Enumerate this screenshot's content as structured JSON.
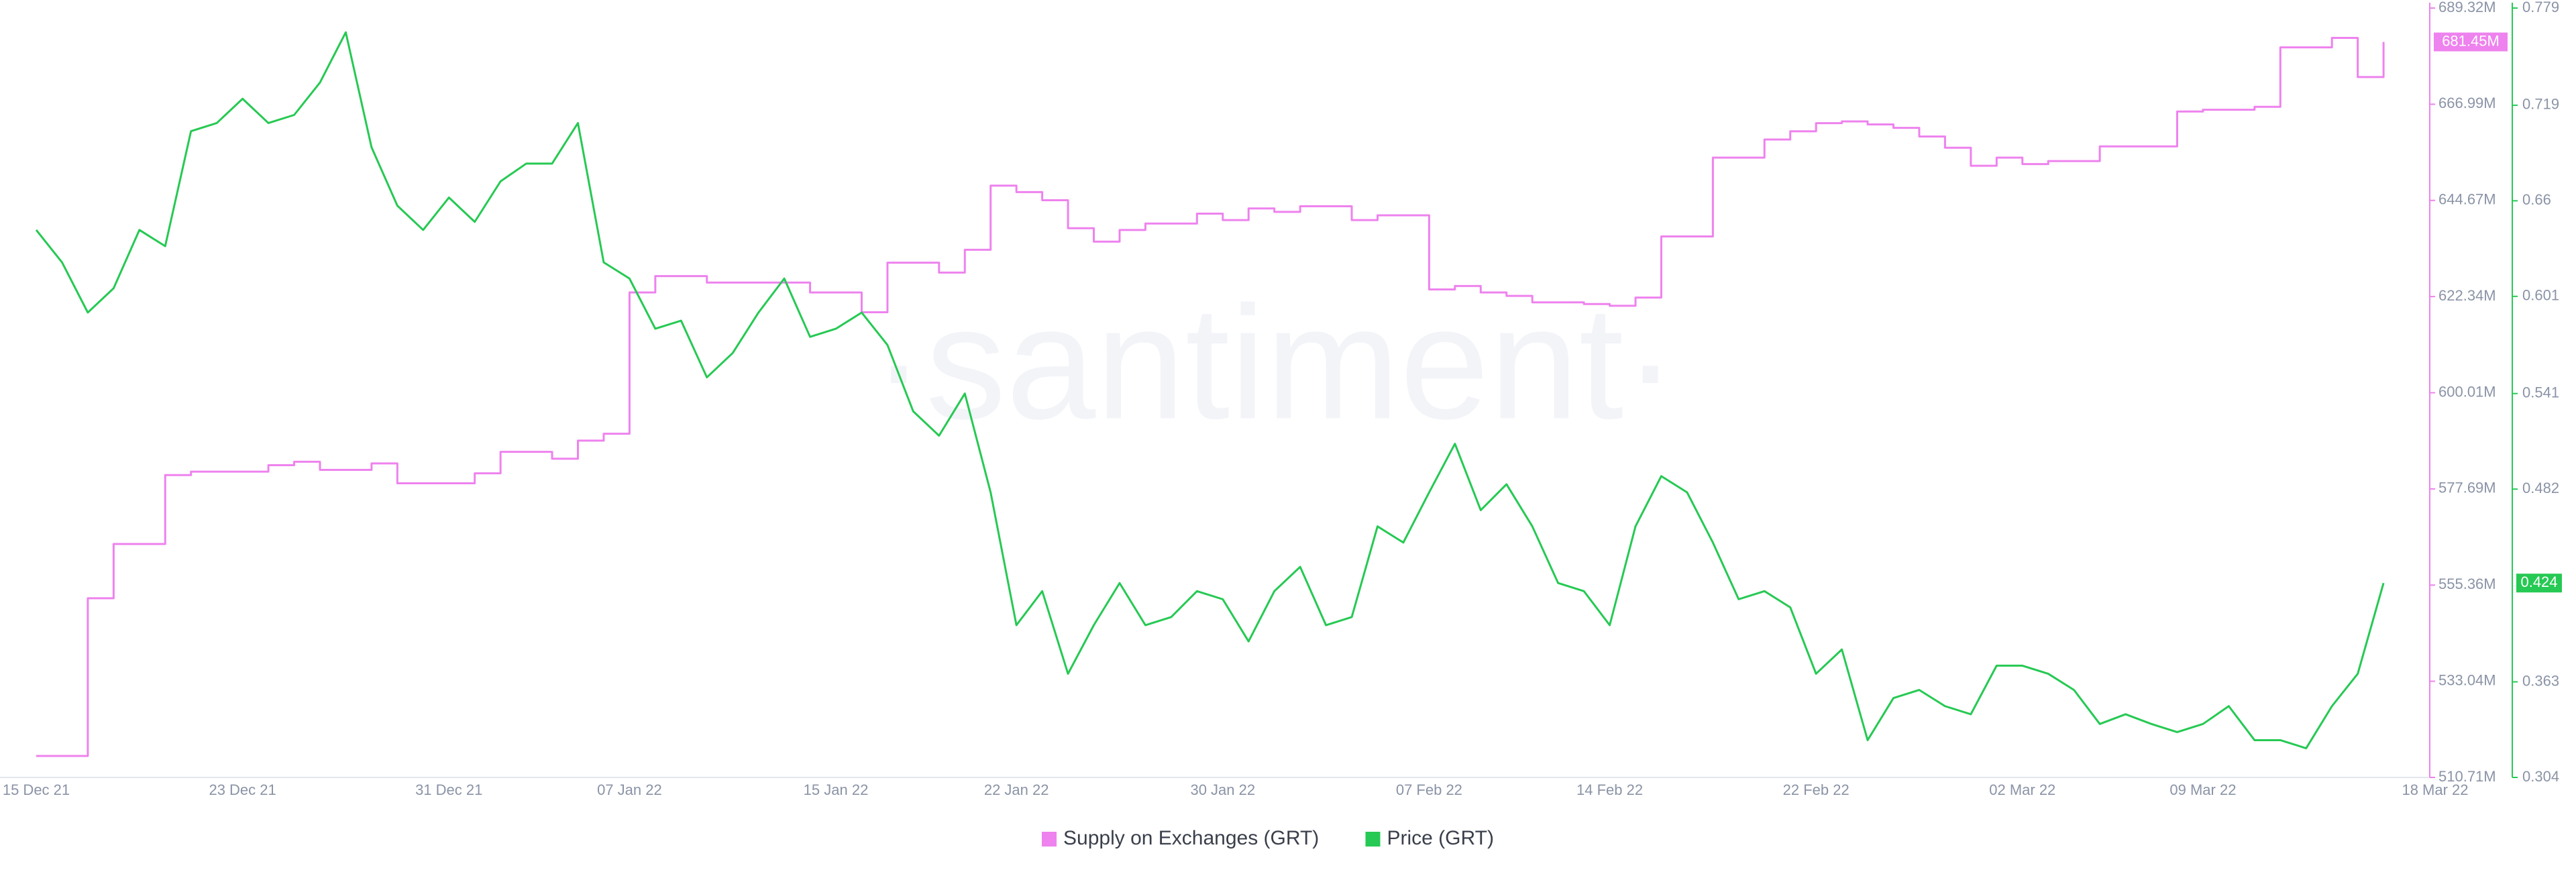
{
  "chart_data": {
    "type": "line",
    "watermark": "·santiment·",
    "x": [
      "15 Dec 21",
      "16 Dec 21",
      "17 Dec 21",
      "18 Dec 21",
      "19 Dec 21",
      "20 Dec 21",
      "21 Dec 21",
      "22 Dec 21",
      "23 Dec 21",
      "24 Dec 21",
      "25 Dec 21",
      "26 Dec 21",
      "27 Dec 21",
      "28 Dec 21",
      "29 Dec 21",
      "30 Dec 21",
      "31 Dec 21",
      "01 Jan 22",
      "02 Jan 22",
      "03 Jan 22",
      "04 Jan 22",
      "05 Jan 22",
      "06 Jan 22",
      "07 Jan 22",
      "08 Jan 22",
      "09 Jan 22",
      "10 Jan 22",
      "11 Jan 22",
      "12 Jan 22",
      "13 Jan 22",
      "14 Jan 22",
      "15 Jan 22",
      "16 Jan 22",
      "17 Jan 22",
      "18 Jan 22",
      "19 Jan 22",
      "20 Jan 22",
      "21 Jan 22",
      "22 Jan 22",
      "23 Jan 22",
      "24 Jan 22",
      "25 Jan 22",
      "26 Jan 22",
      "27 Jan 22",
      "28 Jan 22",
      "29 Jan 22",
      "30 Jan 22",
      "31 Jan 22",
      "01 Feb 22",
      "02 Feb 22",
      "03 Feb 22",
      "04 Feb 22",
      "05 Feb 22",
      "06 Feb 22",
      "07 Feb 22",
      "08 Feb 22",
      "09 Feb 22",
      "10 Feb 22",
      "11 Feb 22",
      "12 Feb 22",
      "13 Feb 22",
      "14 Feb 22",
      "15 Feb 22",
      "16 Feb 22",
      "17 Feb 22",
      "18 Feb 22",
      "19 Feb 22",
      "20 Feb 22",
      "21 Feb 22",
      "22 Feb 22",
      "23 Feb 22",
      "24 Feb 22",
      "25 Feb 22",
      "26 Feb 22",
      "27 Feb 22",
      "28 Feb 22",
      "01 Mar 22",
      "02 Mar 22",
      "03 Mar 22",
      "04 Mar 22",
      "05 Mar 22",
      "06 Mar 22",
      "07 Mar 22",
      "08 Mar 22",
      "09 Mar 22",
      "10 Mar 22",
      "11 Mar 22",
      "12 Mar 22",
      "13 Mar 22",
      "14 Mar 22",
      "15 Mar 22",
      "16 Mar 22",
      "17 Mar 22",
      "18 Mar 22"
    ],
    "xticks": [
      "15 Dec 21",
      "23 Dec 21",
      "31 Dec 21",
      "07 Jan 22",
      "15 Jan 22",
      "22 Jan 22",
      "30 Jan 22",
      "07 Feb 22",
      "14 Feb 22",
      "22 Feb 22",
      "02 Mar 22",
      "09 Mar 22",
      "18 Mar 22"
    ],
    "ylim": [
      510.71,
      689.32
    ],
    "yticks": [
      {
        "value": 510.71,
        "label": "510.71M"
      },
      {
        "value": 533.04,
        "label": "533.04M"
      },
      {
        "value": 555.36,
        "label": "555.36M"
      },
      {
        "value": 577.69,
        "label": "577.69M"
      },
      {
        "value": 600.01,
        "label": "600.01M"
      },
      {
        "value": 622.34,
        "label": "622.34M"
      },
      {
        "value": 644.67,
        "label": "644.67M"
      },
      {
        "value": 666.99,
        "label": "666.99M"
      },
      {
        "value": 689.32,
        "label": "689.32M"
      }
    ],
    "y2lim": [
      0.304,
      0.779
    ],
    "y2ticks": [
      0.304,
      0.363,
      0.482,
      0.541,
      0.601,
      0.66,
      0.719,
      0.779
    ],
    "grid": false,
    "legend": "bottom",
    "series": [
      {
        "name": "Supply on Exchanges (GRT)",
        "color": "#ee82ee",
        "step": true,
        "values": [
          515.7,
          515.7,
          552.3,
          564.9,
          564.9,
          580.9,
          581.7,
          581.7,
          581.7,
          583.2,
          584.0,
          582.1,
          582.1,
          583.6,
          579.0,
          579.0,
          579.0,
          581.3,
          586.3,
          586.3,
          584.7,
          588.9,
          590.5,
          623.3,
          627.1,
          627.1,
          625.6,
          625.6,
          625.6,
          625.6,
          623.3,
          623.3,
          618.7,
          630.2,
          630.2,
          627.9,
          633.2,
          648.1,
          646.6,
          644.7,
          638.2,
          635.1,
          637.8,
          639.3,
          639.3,
          641.6,
          640.1,
          642.8,
          642.0,
          643.3,
          643.3,
          640.1,
          641.2,
          641.2,
          624.0,
          624.8,
          623.3,
          622.5,
          621.0,
          621.0,
          620.6,
          620.2,
          622.1,
          636.3,
          636.3,
          654.6,
          654.6,
          658.8,
          660.7,
          662.6,
          663.0,
          662.3,
          661.5,
          659.5,
          656.9,
          652.7,
          654.6,
          653.1,
          653.8,
          653.8,
          657.2,
          657.2,
          657.2,
          665.3,
          665.7,
          665.7,
          666.4,
          680.2,
          680.2,
          682.4,
          673.3,
          681.45,
          null,
          null
        ],
        "value_labels": [
          null,
          null,
          null,
          null,
          null,
          null,
          null,
          null,
          null,
          null,
          null,
          null,
          null,
          null,
          null,
          null,
          null,
          null,
          null,
          null,
          null,
          null,
          null,
          null,
          null,
          null,
          null,
          null,
          null,
          null,
          null,
          null,
          null,
          null,
          null,
          null,
          null,
          null,
          null,
          null,
          null,
          null,
          null,
          null,
          null,
          null,
          null,
          null,
          null,
          null,
          null,
          null,
          null,
          null,
          null,
          null,
          null,
          null,
          null,
          null,
          null,
          null,
          null,
          null,
          null,
          null,
          null,
          null,
          null,
          null,
          null,
          null,
          null,
          null,
          null,
          null,
          null,
          null,
          null,
          null,
          null,
          null,
          null,
          null,
          null,
          null,
          null,
          null,
          null,
          null,
          null,
          "681.45M",
          null,
          null
        ]
      },
      {
        "name": "Price (GRT)",
        "color": "#26c953",
        "axis": "y2",
        "values": [
          0.642,
          0.622,
          0.591,
          0.606,
          0.642,
          0.632,
          0.703,
          0.708,
          0.723,
          0.708,
          0.713,
          0.733,
          0.764,
          0.693,
          0.657,
          0.642,
          0.662,
          0.647,
          0.672,
          0.683,
          0.683,
          0.708,
          0.622,
          0.612,
          0.581,
          0.586,
          0.551,
          0.566,
          0.591,
          0.612,
          0.576,
          0.581,
          0.591,
          0.571,
          0.53,
          0.515,
          0.541,
          0.48,
          0.398,
          0.419,
          0.368,
          0.398,
          0.424,
          0.398,
          0.403,
          0.419,
          0.414,
          0.388,
          0.419,
          0.434,
          0.398,
          0.403,
          0.459,
          0.449,
          0.48,
          0.51,
          0.469,
          0.485,
          0.459,
          0.424,
          0.419,
          0.398,
          0.459,
          0.49,
          0.48,
          0.449,
          0.414,
          0.419,
          0.409,
          0.368,
          0.383,
          0.327,
          0.353,
          0.358,
          0.348,
          0.343,
          0.373,
          0.373,
          0.368,
          0.358,
          0.337,
          0.343,
          0.337,
          0.332,
          0.337,
          0.348,
          0.327,
          0.327,
          0.322,
          0.348,
          0.368,
          0.424,
          null,
          null
        ]
      }
    ]
  }
}
